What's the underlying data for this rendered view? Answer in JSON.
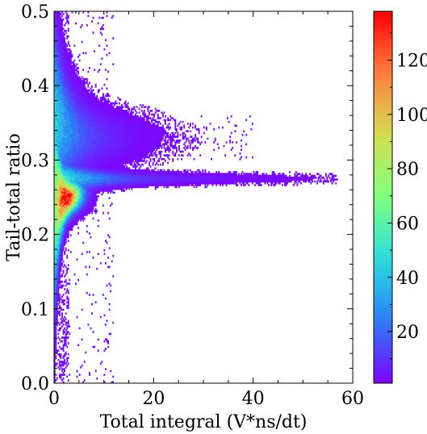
{
  "chart_data": {
    "type": "heatmap",
    "title": "",
    "xlabel": "Total integral (V*ns/dt)",
    "ylabel": "Tail-total ratio",
    "xlim": [
      0,
      60
    ],
    "ylim": [
      0.0,
      0.5
    ],
    "x_ticks": [
      0,
      20,
      40,
      60
    ],
    "x_tick_labels": [
      "0",
      "20",
      "40",
      "60"
    ],
    "y_ticks": [
      0.0,
      0.1,
      0.2,
      0.3,
      0.4,
      0.5
    ],
    "y_tick_labels": [
      "0.0",
      "0.1",
      "0.2",
      "0.3",
      "0.4",
      "0.5"
    ],
    "colorbar": {
      "min": 1,
      "max": 138,
      "ticks": [
        20,
        40,
        60,
        80,
        100,
        120
      ],
      "tick_labels": [
        "20",
        "40",
        "60",
        "80",
        "100",
        "120"
      ],
      "colormap": "rainbow",
      "colormap_stops": [
        "#8000ff",
        "#2c7ef7",
        "#2adddd",
        "#80ff80",
        "#d4dd4f",
        "#ff7e41",
        "#ff0000"
      ]
    },
    "grid": false,
    "populations": [
      {
        "x_center": 2.5,
        "y_center": 0.245,
        "x_range": [
          0,
          10
        ],
        "y_spread": 0.012,
        "peak_count": 138
      },
      {
        "x_center": 10,
        "y_center": 0.275,
        "x_range": [
          0,
          57
        ],
        "y_spread": 0.005,
        "peak_count": 65
      },
      {
        "x_center": 8,
        "y_center": 0.33,
        "x_range": [
          0,
          50
        ],
        "y_spread": 0.022,
        "peak_count": 45
      }
    ]
  }
}
